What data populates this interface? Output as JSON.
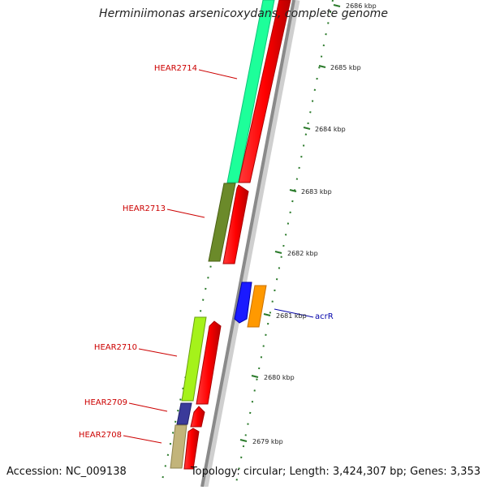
{
  "title": "Herminiimonas arsenicoxydans, complete genome",
  "footer": {
    "accession": "Accession: NC_009138",
    "summary": "Topology: circular; Length: 3,424,307 bp; Genes: 3,353"
  },
  "scale": [
    {
      "label": "2686 kbp"
    },
    {
      "label": "2685 kbp"
    },
    {
      "label": "2684 kbp"
    },
    {
      "label": "2683 kbp"
    },
    {
      "label": "2682 kbp"
    },
    {
      "label": "2681 kbp"
    },
    {
      "label": "2680 kbp"
    },
    {
      "label": "2679 kbp"
    }
  ],
  "genes": [
    {
      "name": "HEAR2714",
      "label_color": "#cc0000",
      "fill": "#1dff9a"
    },
    {
      "name": "HEAR2713",
      "label_color": "#cc0000",
      "fill": "#6b8a2a"
    },
    {
      "name": "acrR",
      "label_color": "#0000aa",
      "fill": "#1a1aff"
    },
    {
      "name": "HEAR2710",
      "label_color": "#cc0000",
      "fill": "#a5f21a"
    },
    {
      "name": "HEAR2709",
      "label_color": "#cc0000",
      "fill": "#3a3a9a"
    },
    {
      "name": "HEAR2708",
      "label_color": "#cc0000",
      "fill": "#c2b47a"
    }
  ],
  "colors": {
    "backbone": "#8a8a8a",
    "cds": "#ff0000",
    "orange_cds": "#ff9900",
    "tick": "#2a7a2a"
  }
}
